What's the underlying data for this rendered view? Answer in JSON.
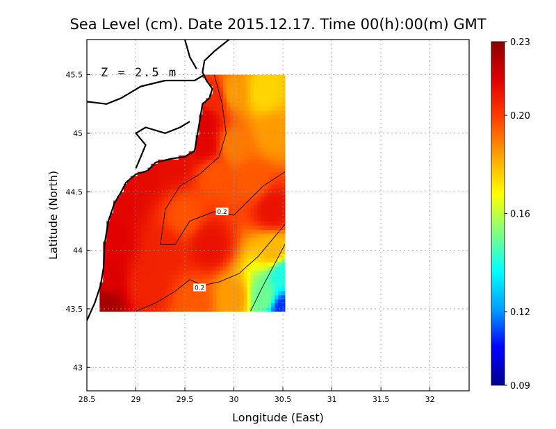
{
  "chart_data": {
    "type": "heatmap",
    "title": "Sea Level (cm). Date 2015.12.17. Time 00(h):00(m) GMT",
    "annotation": "Z = 2.5 m",
    "xlabel": "Longitude (East)",
    "ylabel": "Latitude (North)",
    "xlim": [
      28.5,
      32.4
    ],
    "ylim": [
      42.8,
      45.8
    ],
    "x_ticks": [
      "28.5",
      "29",
      "29.5",
      "30",
      "30.5",
      "31",
      "31.5",
      "32"
    ],
    "y_ticks": [
      "43",
      "43.5",
      "44",
      "44.5",
      "45",
      "45.5"
    ],
    "x_tick_values": [
      28.5,
      29,
      29.5,
      30,
      30.5,
      31,
      31.5,
      32
    ],
    "y_tick_values": [
      43,
      43.5,
      44,
      44.5,
      45,
      45.5
    ],
    "grid": true,
    "data_extent": {
      "lon": [
        28.63,
        30.52
      ],
      "lat": [
        43.48,
        45.5
      ]
    },
    "colorbar": {
      "min": 0.09,
      "max": 0.23,
      "ticks": [
        "0.09",
        "0.12",
        "0.16",
        "0.20",
        "0.23"
      ],
      "tick_values": [
        0.09,
        0.12,
        0.16,
        0.2,
        0.23
      ],
      "colors": [
        "#00008c",
        "#0000ff",
        "#00a0ff",
        "#00ffff",
        "#80ff80",
        "#ffff00",
        "#ffa500",
        "#ff4000",
        "#e00000",
        "#8c0000"
      ]
    },
    "field_points": [
      {
        "lon": 28.68,
        "lat": 43.55,
        "v": 0.225
      },
      {
        "lon": 28.7,
        "lat": 43.75,
        "v": 0.215
      },
      {
        "lon": 28.75,
        "lat": 44.1,
        "v": 0.214
      },
      {
        "lon": 28.85,
        "lat": 44.45,
        "v": 0.213
      },
      {
        "lon": 29.1,
        "lat": 44.65,
        "v": 0.212
      },
      {
        "lon": 29.4,
        "lat": 44.75,
        "v": 0.211
      },
      {
        "lon": 29.7,
        "lat": 44.9,
        "v": 0.213
      },
      {
        "lon": 29.7,
        "lat": 45.1,
        "v": 0.214
      },
      {
        "lon": 29.8,
        "lat": 45.3,
        "v": 0.205
      },
      {
        "lon": 30.0,
        "lat": 45.35,
        "v": 0.185
      },
      {
        "lon": 30.3,
        "lat": 45.35,
        "v": 0.175
      },
      {
        "lon": 30.4,
        "lat": 45.0,
        "v": 0.185
      },
      {
        "lon": 30.0,
        "lat": 44.9,
        "v": 0.19
      },
      {
        "lon": 29.8,
        "lat": 44.65,
        "v": 0.196
      },
      {
        "lon": 29.5,
        "lat": 44.3,
        "v": 0.196
      },
      {
        "lon": 29.75,
        "lat": 44.05,
        "v": 0.21
      },
      {
        "lon": 30.4,
        "lat": 44.35,
        "v": 0.21
      },
      {
        "lon": 30.2,
        "lat": 44.6,
        "v": 0.195
      },
      {
        "lon": 29.3,
        "lat": 44.0,
        "v": 0.206
      },
      {
        "lon": 29.1,
        "lat": 43.7,
        "v": 0.206
      },
      {
        "lon": 29.6,
        "lat": 43.55,
        "v": 0.195
      },
      {
        "lon": 30.0,
        "lat": 43.6,
        "v": 0.185
      },
      {
        "lon": 30.3,
        "lat": 43.6,
        "v": 0.15
      },
      {
        "lon": 30.5,
        "lat": 43.5,
        "v": 0.11
      },
      {
        "lon": 30.5,
        "lat": 43.8,
        "v": 0.14
      },
      {
        "lon": 30.4,
        "lat": 44.0,
        "v": 0.18
      }
    ],
    "contours": [
      {
        "label": "0.2",
        "label_at": [
          29.88,
          44.33
        ],
        "points": [
          [
            29.8,
            45.5
          ],
          [
            29.88,
            45.25
          ],
          [
            29.92,
            45.0
          ],
          [
            29.85,
            44.8
          ],
          [
            29.65,
            44.65
          ],
          [
            29.45,
            44.55
          ],
          [
            29.3,
            44.35
          ],
          [
            29.25,
            44.05
          ],
          [
            29.4,
            44.05
          ],
          [
            29.55,
            44.25
          ],
          [
            29.8,
            44.33
          ],
          [
            30.0,
            44.3
          ],
          [
            30.3,
            44.55
          ],
          [
            30.52,
            44.67
          ]
        ]
      },
      {
        "label": "0.2",
        "label_at": [
          29.65,
          43.68
        ],
        "points": [
          [
            29.0,
            43.48
          ],
          [
            29.2,
            43.55
          ],
          [
            29.4,
            43.65
          ],
          [
            29.55,
            43.75
          ],
          [
            29.68,
            43.7
          ],
          [
            29.85,
            43.73
          ],
          [
            30.05,
            43.8
          ],
          [
            30.25,
            43.95
          ],
          [
            30.52,
            44.22
          ]
        ]
      },
      {
        "label": "",
        "label_at": [
          0,
          0
        ],
        "points": [
          [
            30.17,
            43.48
          ],
          [
            30.3,
            43.7
          ],
          [
            30.52,
            44.05
          ]
        ]
      }
    ],
    "coastline": [
      [
        [
          29.95,
          45.8
        ],
        [
          29.8,
          45.7
        ],
        [
          29.7,
          45.62
        ],
        [
          29.68,
          45.52
        ],
        [
          29.72,
          45.45
        ],
        [
          29.78,
          45.38
        ],
        [
          29.75,
          45.3
        ],
        [
          29.68,
          45.25
        ],
        [
          29.65,
          45.1
        ],
        [
          29.62,
          44.95
        ],
        [
          29.6,
          44.85
        ],
        [
          29.5,
          44.8
        ],
        [
          29.35,
          44.78
        ],
        [
          29.2,
          44.75
        ],
        [
          29.12,
          44.68
        ],
        [
          29.0,
          44.65
        ],
        [
          28.9,
          44.58
        ],
        [
          28.85,
          44.5
        ],
        [
          28.78,
          44.4
        ],
        [
          28.72,
          44.25
        ],
        [
          28.68,
          44.05
        ],
        [
          28.67,
          43.85
        ],
        [
          28.64,
          43.7
        ],
        [
          28.58,
          43.55
        ],
        [
          28.5,
          43.4
        ]
      ],
      [
        [
          28.5,
          45.27
        ],
        [
          28.7,
          45.25
        ],
        [
          28.85,
          45.3
        ],
        [
          29.05,
          45.4
        ],
        [
          29.3,
          45.45
        ],
        [
          29.6,
          45.45
        ],
        [
          29.7,
          45.5
        ]
      ],
      [
        [
          29.5,
          45.8
        ],
        [
          29.55,
          45.65
        ],
        [
          29.62,
          45.55
        ]
      ],
      [
        [
          29.0,
          44.7
        ],
        [
          29.05,
          44.8
        ],
        [
          29.1,
          44.9
        ],
        [
          29.0,
          45.0
        ],
        [
          29.1,
          45.05
        ],
        [
          29.3,
          45.0
        ],
        [
          29.45,
          45.05
        ],
        [
          29.55,
          45.1
        ]
      ]
    ]
  }
}
